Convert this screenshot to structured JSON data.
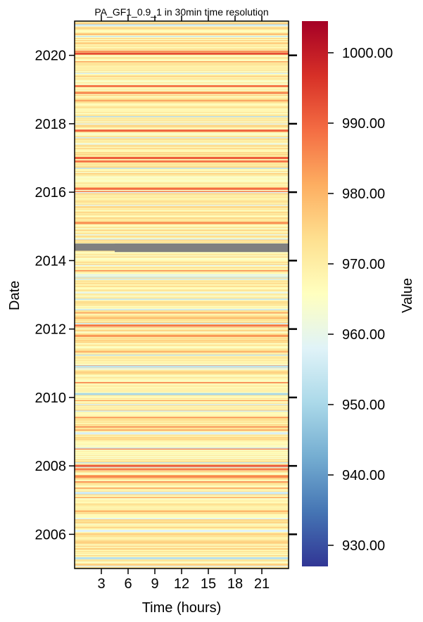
{
  "chart_data": {
    "type": "heatmap",
    "title": "PA_GF1_0.9_1 in 30min time resolution",
    "xlabel": "Time (hours)",
    "ylabel": "Date",
    "x_ticks": [
      3,
      6,
      9,
      12,
      15,
      18,
      21
    ],
    "x_range": [
      0,
      24
    ],
    "y_ticks": [
      2006,
      2008,
      2010,
      2012,
      2014,
      2016,
      2018,
      2020
    ],
    "y_range": [
      2005.0,
      2021.0
    ],
    "colorbar": {
      "label": "Value",
      "range": [
        927,
        1004.5
      ],
      "ticks": [
        "930.00",
        "940.00",
        "950.00",
        "960.00",
        "970.00",
        "980.00",
        "990.00",
        "1000.00"
      ],
      "tick_values": [
        930,
        940,
        950,
        960,
        970,
        980,
        990,
        1000
      ],
      "colormap": "RdYlBu_r"
    },
    "typical_value": 970,
    "missing_data": {
      "color": "#808080",
      "period": [
        "2014-04",
        "2014-07"
      ],
      "note_start_hour": 4.5
    },
    "notable_rows": [
      {
        "year": 2020.05,
        "value": 993
      },
      {
        "year": 2019.1,
        "value": 988
      },
      {
        "year": 2018.9,
        "value": 986
      },
      {
        "year": 2017.8,
        "value": 990
      },
      {
        "year": 2017.0,
        "value": 991
      },
      {
        "year": 2016.9,
        "value": 988
      },
      {
        "year": 2016.1,
        "value": 989
      },
      {
        "year": 2015.1,
        "value": 985
      },
      {
        "year": 2012.1,
        "value": 988
      },
      {
        "year": 2011.8,
        "value": 984
      },
      {
        "year": 2010.9,
        "value": 953
      },
      {
        "year": 2010.1,
        "value": 950
      },
      {
        "year": 2008.95,
        "value": 957
      },
      {
        "year": 2008.0,
        "value": 991
      },
      {
        "year": 2007.9,
        "value": 987
      },
      {
        "year": 2007.2,
        "value": 955
      },
      {
        "year": 2006.1,
        "value": 958
      },
      {
        "year": 2005.3,
        "value": 952
      }
    ]
  }
}
